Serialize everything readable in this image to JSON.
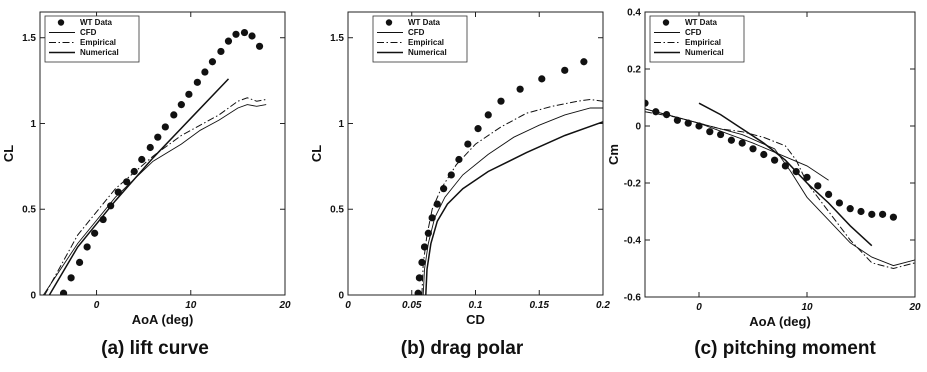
{
  "figures": [
    {
      "caption": "(a)  lift  curve",
      "chart_data": {
        "type": "line",
        "xlabel": "AoA (deg)",
        "ylabel": "CL",
        "xlim": [
          -6,
          20
        ],
        "ylim": [
          0,
          1.65
        ],
        "xticks": [
          0,
          10,
          20
        ],
        "xtick_labels": [
          "0",
          "10",
          "20"
        ],
        "yticks": [
          0,
          0.5,
          1,
          1.5
        ],
        "ytick_labels": [
          "0",
          "0.5",
          "1",
          "1.5"
        ],
        "legend": "top-left",
        "series": [
          {
            "name": "WT Data",
            "style": "markers",
            "x": [
              -3.5,
              -2.7,
              -1.8,
              -1,
              -0.2,
              0.7,
              1.5,
              2.3,
              3.2,
              4,
              4.8,
              5.7,
              6.5,
              7.3,
              8.2,
              9,
              9.8,
              10.7,
              11.5,
              12.3,
              13.2,
              14,
              14.8,
              15.7,
              16.5,
              17.3
            ],
            "y": [
              0.01,
              0.1,
              0.19,
              0.28,
              0.36,
              0.44,
              0.52,
              0.6,
              0.66,
              0.72,
              0.79,
              0.86,
              0.92,
              0.98,
              1.05,
              1.11,
              1.17,
              1.24,
              1.3,
              1.36,
              1.42,
              1.48,
              1.52,
              1.53,
              1.51,
              1.45
            ]
          },
          {
            "name": "CFD",
            "style": "thin",
            "x": [
              -6,
              -2,
              2,
              6,
              9,
              11,
              13,
              15,
              16,
              17,
              18
            ],
            "y": [
              -0.03,
              0.3,
              0.57,
              0.78,
              0.88,
              0.96,
              1.02,
              1.09,
              1.11,
              1.1,
              1.11
            ]
          },
          {
            "name": "Empirical",
            "style": "dashdot",
            "x": [
              -5.5,
              -2,
              2,
              6,
              9,
              11,
              13,
              15,
              16,
              17,
              18
            ],
            "y": [
              0,
              0.35,
              0.62,
              0.81,
              0.93,
              0.99,
              1.05,
              1.13,
              1.15,
              1.13,
              1.14
            ]
          },
          {
            "name": "Numerical",
            "style": "thick",
            "x": [
              -5,
              -2,
              2,
              6,
              10,
              14
            ],
            "y": [
              0,
              0.28,
              0.55,
              0.8,
              1.03,
              1.26
            ]
          }
        ]
      }
    },
    {
      "caption": "(b)  drag  polar",
      "chart_data": {
        "type": "line",
        "xlabel": "CD",
        "ylabel": "CL",
        "xlim": [
          0,
          0.2
        ],
        "ylim": [
          0,
          1.65
        ],
        "xticks": [
          0,
          0.05,
          0.1,
          0.15,
          0.2
        ],
        "xtick_labels": [
          "0",
          "0.05",
          "0.1",
          "0.15",
          "0.2"
        ],
        "yticks": [
          0,
          0.5,
          1,
          1.5
        ],
        "ytick_labels": [
          "0",
          "0.5",
          "1",
          "1.5"
        ],
        "legend": "top-right",
        "series": [
          {
            "name": "WT Data",
            "style": "markers",
            "x": [
              0.055,
              0.056,
              0.058,
              0.06,
              0.063,
              0.066,
              0.07,
              0.075,
              0.081,
              0.087,
              0.094,
              0.102,
              0.11,
              0.12,
              0.135,
              0.152,
              0.17,
              0.185
            ],
            "y": [
              0.01,
              0.1,
              0.19,
              0.28,
              0.36,
              0.45,
              0.53,
              0.62,
              0.7,
              0.79,
              0.88,
              0.97,
              1.05,
              1.13,
              1.2,
              1.26,
              1.31,
              1.36
            ]
          },
          {
            "name": "CFD",
            "style": "thin",
            "x": [
              0.059,
              0.06,
              0.063,
              0.068,
              0.076,
              0.09,
              0.11,
              0.13,
              0.15,
              0.17,
              0.19,
              0.2
            ],
            "y": [
              0,
              0.15,
              0.3,
              0.45,
              0.57,
              0.7,
              0.82,
              0.92,
              0.99,
              1.05,
              1.09,
              1.09
            ]
          },
          {
            "name": "Empirical",
            "style": "dashdot",
            "x": [
              0.058,
              0.059,
              0.062,
              0.066,
              0.073,
              0.085,
              0.1,
              0.12,
              0.14,
              0.16,
              0.18,
              0.19,
              0.2
            ],
            "y": [
              0,
              0.18,
              0.35,
              0.5,
              0.62,
              0.76,
              0.88,
              0.98,
              1.06,
              1.1,
              1.13,
              1.14,
              1.13
            ]
          },
          {
            "name": "Numerical",
            "style": "thick",
            "x": [
              0.061,
              0.062,
              0.065,
              0.07,
              0.078,
              0.09,
              0.11,
              0.14,
              0.17,
              0.2
            ],
            "y": [
              0,
              0.15,
              0.3,
              0.43,
              0.53,
              0.62,
              0.72,
              0.83,
              0.93,
              1.01
            ]
          }
        ]
      }
    },
    {
      "caption": "(c)  pitching  moment",
      "chart_data": {
        "type": "line",
        "xlabel": "AoA (deg)",
        "ylabel": "Cm",
        "xlim": [
          -5,
          20
        ],
        "ylim": [
          -0.6,
          0.4
        ],
        "xticks": [
          0,
          10,
          20
        ],
        "xtick_labels": [
          "0",
          "10",
          "20"
        ],
        "yticks": [
          -0.6,
          -0.4,
          -0.2,
          0,
          0.2,
          0.4
        ],
        "ytick_labels": [
          "-0.6",
          "-0.4",
          "-0.2",
          "0",
          "0.2",
          "0.4"
        ],
        "legend": "top-left",
        "series": [
          {
            "name": "WT Data",
            "style": "markers",
            "x": [
              -5,
              -4,
              -3,
              -2,
              -1,
              0,
              1,
              2,
              3,
              4,
              5,
              6,
              7,
              8,
              9,
              10,
              11,
              12,
              13,
              14,
              15,
              16,
              17,
              18
            ],
            "y": [
              0.08,
              0.05,
              0.04,
              0.02,
              0.01,
              0,
              -0.02,
              -0.03,
              -0.05,
              -0.06,
              -0.08,
              -0.1,
              -0.12,
              -0.14,
              -0.16,
              -0.18,
              -0.21,
              -0.24,
              -0.27,
              -0.29,
              -0.3,
              -0.31,
              -0.31,
              -0.32
            ]
          },
          {
            "name": "CFD",
            "style": "thin",
            "x": [
              -5,
              -2,
              1,
              4,
              7,
              8.5,
              10,
              12,
              14,
              16,
              18,
              20
            ],
            "y": [
              0.06,
              0.03,
              0,
              -0.03,
              -0.08,
              -0.16,
              -0.25,
              -0.33,
              -0.41,
              -0.46,
              -0.49,
              -0.47
            ]
          },
          {
            "name": "Empirical",
            "style": "dashdot",
            "x": [
              -5,
              -2,
              0,
              2,
              4,
              6,
              8,
              9,
              10,
              12,
              14,
              16,
              18,
              20
            ],
            "y": [
              0.05,
              0.03,
              0.01,
              -0.01,
              -0.02,
              -0.04,
              -0.07,
              -0.12,
              -0.2,
              -0.3,
              -0.4,
              -0.48,
              -0.5,
              -0.48
            ]
          },
          {
            "name": "Numerical",
            "style": "thick",
            "x": [
              0,
              2,
              4,
              6,
              8,
              10,
              12,
              14,
              16
            ],
            "y": [
              0.08,
              0.04,
              -0.01,
              -0.06,
              -0.12,
              -0.2,
              -0.27,
              -0.35,
              -0.42
            ]
          },
          {
            "name": "",
            "style": "thin",
            "x": [
              -5,
              0,
              5,
              10,
              12
            ],
            "y": [
              0.06,
              0.01,
              -0.06,
              -0.14,
              -0.19
            ]
          }
        ]
      }
    }
  ]
}
